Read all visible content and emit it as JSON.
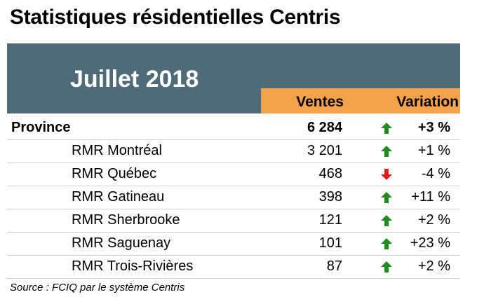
{
  "title": "Statistiques résidentielles Centris",
  "period": "Juillet 2018",
  "columns": {
    "sales": "Ventes",
    "variation": "Variation"
  },
  "colors": {
    "panel": "#4f6b78",
    "header_bar": "#f4a24a",
    "up": "#1e8c1e",
    "down": "#e01f1f"
  },
  "rows": [
    {
      "label": "Province",
      "sales": "6 284",
      "variation": "+3 %",
      "direction": "up",
      "bold": true
    },
    {
      "label": "RMR Montréal",
      "sales": "3 201",
      "variation": "+1 %",
      "direction": "up",
      "bold": false
    },
    {
      "label": "RMR Québec",
      "sales": "468",
      "variation": "-4 %",
      "direction": "down",
      "bold": false
    },
    {
      "label": "RMR Gatineau",
      "sales": "398",
      "variation": "+11 %",
      "direction": "up",
      "bold": false
    },
    {
      "label": "RMR Sherbrooke",
      "sales": "121",
      "variation": "+2 %",
      "direction": "up",
      "bold": false
    },
    {
      "label": "RMR Saguenay",
      "sales": "101",
      "variation": "+23 %",
      "direction": "up",
      "bold": false
    },
    {
      "label": "RMR Trois-Rivières",
      "sales": "87",
      "variation": "+2 %",
      "direction": "up",
      "bold": false
    }
  ],
  "source": "Source : FCIQ par le système Centris"
}
